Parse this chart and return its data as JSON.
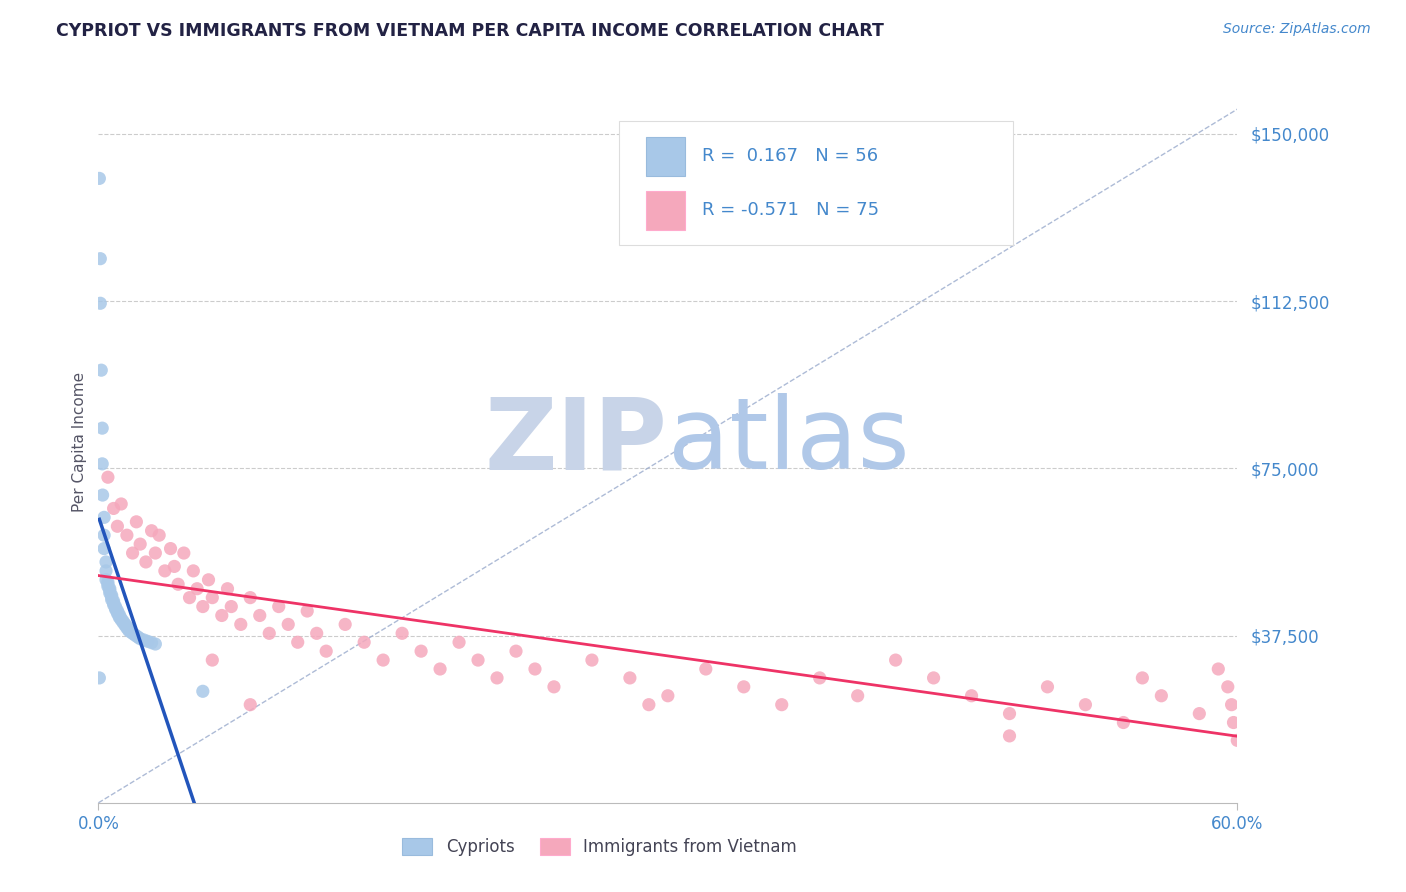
{
  "title": "CYPRIOT VS IMMIGRANTS FROM VIETNAM PER CAPITA INCOME CORRELATION CHART",
  "source": "Source: ZipAtlas.com",
  "ylabel": "Per Capita Income",
  "yticks": [
    0,
    37500,
    75000,
    112500,
    150000
  ],
  "ytick_labels": [
    "",
    "$37,500",
    "$75,000",
    "$112,500",
    "$150,000"
  ],
  "xmin": 0.0,
  "xmax": 0.6,
  "ymin": 0,
  "ymax": 162000,
  "r_cypriot": "0.167",
  "n_cypriot": "56",
  "r_vietnam": "-0.571",
  "n_vietnam": "75",
  "legend_labels": [
    "Cypriots",
    "Immigrants from Vietnam"
  ],
  "color_cypriot": "#a8c8e8",
  "color_vietnam": "#f5a8bc",
  "line_color_cypriot": "#2255bb",
  "line_color_vietnam": "#ee3366",
  "diag_line_color": "#99aacc",
  "watermark_zip_color": "#c8d4e8",
  "watermark_atlas_color": "#b0c8e8",
  "title_color": "#222244",
  "axis_label_color": "#4488cc",
  "source_color": "#4488cc",
  "ylabel_color": "#555566",
  "cypriot_x": [
    0.0005,
    0.001,
    0.001,
    0.0015,
    0.002,
    0.002,
    0.0022,
    0.003,
    0.003,
    0.003,
    0.004,
    0.004,
    0.004,
    0.005,
    0.005,
    0.005,
    0.006,
    0.006,
    0.006,
    0.007,
    0.007,
    0.007,
    0.008,
    0.008,
    0.008,
    0.009,
    0.009,
    0.009,
    0.01,
    0.01,
    0.01,
    0.011,
    0.011,
    0.011,
    0.012,
    0.012,
    0.013,
    0.013,
    0.014,
    0.014,
    0.015,
    0.015,
    0.016,
    0.016,
    0.017,
    0.018,
    0.019,
    0.02,
    0.021,
    0.022,
    0.024,
    0.026,
    0.028,
    0.03,
    0.0005,
    0.055
  ],
  "cypriot_y": [
    140000,
    122000,
    112000,
    97000,
    84000,
    76000,
    69000,
    64000,
    60000,
    57000,
    54000,
    52000,
    50000,
    49500,
    49000,
    48500,
    48000,
    47500,
    47000,
    46500,
    46000,
    45500,
    45200,
    44800,
    44400,
    44000,
    43700,
    43400,
    43100,
    42800,
    42500,
    42200,
    41900,
    41600,
    41300,
    41000,
    40700,
    40400,
    40100,
    39800,
    39500,
    39200,
    38900,
    38600,
    38300,
    38000,
    37700,
    37400,
    37100,
    36800,
    36500,
    36200,
    35900,
    35600,
    28000,
    25000
  ],
  "vietnam_x": [
    0.005,
    0.008,
    0.01,
    0.012,
    0.015,
    0.018,
    0.02,
    0.022,
    0.025,
    0.028,
    0.03,
    0.032,
    0.035,
    0.038,
    0.04,
    0.042,
    0.045,
    0.048,
    0.05,
    0.052,
    0.055,
    0.058,
    0.06,
    0.065,
    0.068,
    0.07,
    0.075,
    0.08,
    0.085,
    0.09,
    0.095,
    0.1,
    0.105,
    0.11,
    0.115,
    0.12,
    0.13,
    0.14,
    0.15,
    0.16,
    0.17,
    0.18,
    0.19,
    0.2,
    0.21,
    0.22,
    0.23,
    0.24,
    0.26,
    0.28,
    0.3,
    0.32,
    0.34,
    0.36,
    0.38,
    0.4,
    0.42,
    0.44,
    0.46,
    0.48,
    0.5,
    0.52,
    0.54,
    0.56,
    0.58,
    0.59,
    0.595,
    0.597,
    0.598,
    0.6,
    0.06,
    0.08,
    0.29,
    0.55,
    0.48
  ],
  "vietnam_y": [
    73000,
    66000,
    62000,
    67000,
    60000,
    56000,
    63000,
    58000,
    54000,
    61000,
    56000,
    60000,
    52000,
    57000,
    53000,
    49000,
    56000,
    46000,
    52000,
    48000,
    44000,
    50000,
    46000,
    42000,
    48000,
    44000,
    40000,
    46000,
    42000,
    38000,
    44000,
    40000,
    36000,
    43000,
    38000,
    34000,
    40000,
    36000,
    32000,
    38000,
    34000,
    30000,
    36000,
    32000,
    28000,
    34000,
    30000,
    26000,
    32000,
    28000,
    24000,
    30000,
    26000,
    22000,
    28000,
    24000,
    32000,
    28000,
    24000,
    20000,
    26000,
    22000,
    18000,
    24000,
    20000,
    30000,
    26000,
    22000,
    18000,
    14000,
    32000,
    22000,
    22000,
    28000,
    15000
  ]
}
